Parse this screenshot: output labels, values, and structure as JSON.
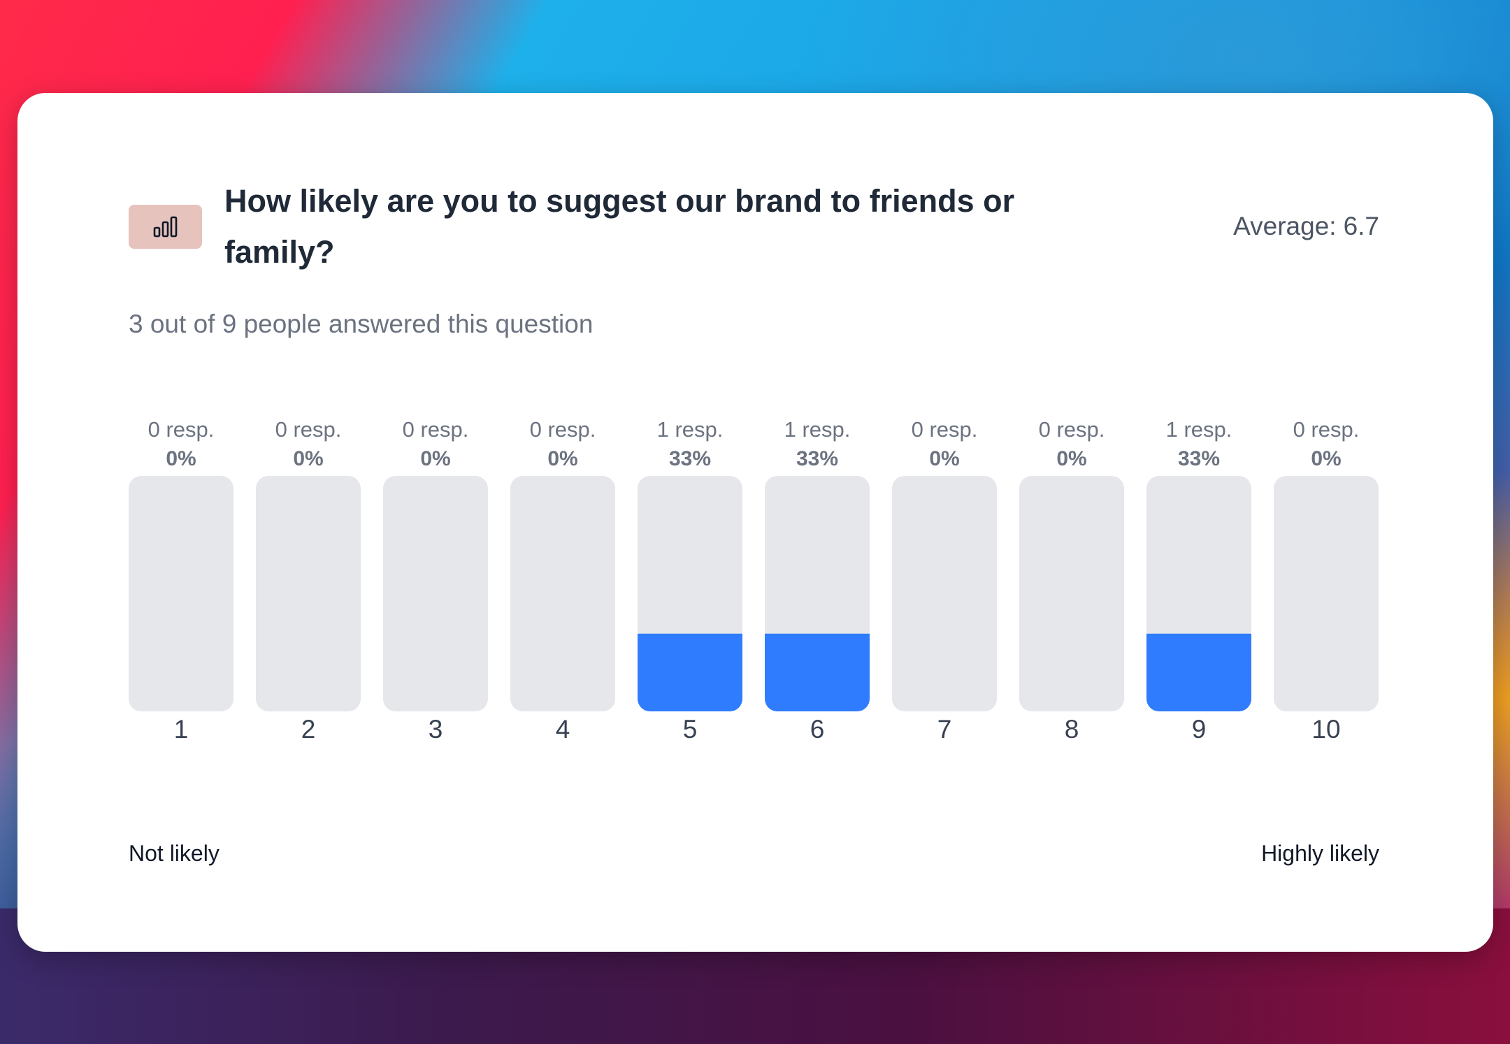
{
  "question": {
    "title": "How likely are you to suggest our brand to friends or family?",
    "average_label": "Average:",
    "average_value": "6.7",
    "answered_text": "3 out of 9 people answered this question",
    "icon": "bar-chart-icon"
  },
  "legend": {
    "low_label": "Not likely",
    "high_label": "Highly likely"
  },
  "colors": {
    "bar_fill": "#2f7cff",
    "bar_track": "#e5e7eb",
    "icon_badge": "#e6c3bd"
  },
  "chart_data": {
    "type": "bar",
    "title": "How likely are you to suggest our brand to friends or family?",
    "categories": [
      "1",
      "2",
      "3",
      "4",
      "5",
      "6",
      "7",
      "8",
      "9",
      "10"
    ],
    "responses": [
      0,
      0,
      0,
      0,
      1,
      1,
      0,
      0,
      1,
      0
    ],
    "percent_values": [
      0,
      0,
      0,
      0,
      33,
      33,
      0,
      0,
      33,
      0
    ],
    "response_labels": [
      "0 resp.",
      "0 resp.",
      "0 resp.",
      "0 resp.",
      "1 resp.",
      "1 resp.",
      "0 resp.",
      "0 resp.",
      "1 resp.",
      "0 resp."
    ],
    "percent_labels": [
      "0%",
      "0%",
      "0%",
      "0%",
      "33%",
      "33%",
      "0%",
      "0%",
      "33%",
      "0%"
    ],
    "ylim": [
      0,
      100
    ],
    "xlabel": "",
    "ylabel": ""
  }
}
